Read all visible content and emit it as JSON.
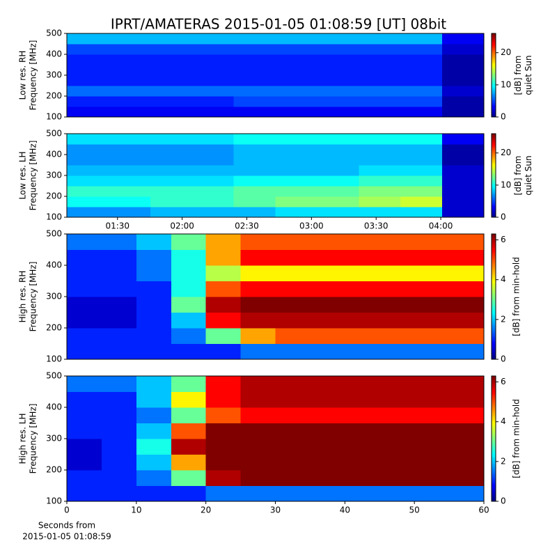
{
  "chart_data": [
    {
      "type": "heatmap",
      "title": "IPRT/AMATERAS 2015-01-05 01:08:59 [UT]   08bit",
      "ylabel": [
        "Low res. RH",
        "Frequency [MHz]"
      ],
      "colorbar_label": [
        "[dB] from",
        "quiet Sun"
      ],
      "colormap": "jet",
      "xlim": [
        66.5,
        260
      ],
      "ylim": [
        100,
        500
      ],
      "yticks": [
        100,
        200,
        300,
        400,
        500
      ],
      "zlim": [
        0,
        26
      ],
      "zticks": [
        0,
        10,
        20
      ],
      "z": [
        [
          3,
          3,
          3,
          3,
          3,
          3,
          3,
          3,
          3,
          1
        ],
        [
          4,
          4,
          4,
          4,
          5,
          5,
          5,
          5,
          5,
          1
        ],
        [
          6,
          6,
          6,
          6,
          6,
          6,
          6,
          6,
          6,
          2
        ],
        [
          4,
          4,
          4,
          4,
          4,
          4,
          4,
          4,
          4,
          1
        ],
        [
          4,
          4,
          4,
          4,
          4,
          4,
          4,
          4,
          4,
          1
        ],
        [
          4,
          4,
          4,
          4,
          4,
          4,
          4,
          4,
          4,
          1
        ],
        [
          5,
          5,
          5,
          5,
          5,
          5,
          5,
          5,
          5,
          2
        ],
        [
          8,
          8,
          8,
          8,
          8,
          8,
          8,
          8,
          8,
          3
        ]
      ]
    },
    {
      "type": "heatmap",
      "ylabel": [
        "Low res. LH",
        "Frequency [MHz]"
      ],
      "colorbar_label": [
        "[dB] from",
        "quiet Sun"
      ],
      "colormap": "jet",
      "xlim": [
        66.5,
        260
      ],
      "xticks": [
        {
          "value": 90,
          "label": "01:30"
        },
        {
          "value": 120,
          "label": "02:00"
        },
        {
          "value": 150,
          "label": "02:30"
        },
        {
          "value": 180,
          "label": "03:00"
        },
        {
          "value": 210,
          "label": "03:30"
        },
        {
          "value": 240,
          "label": "04:00"
        }
      ],
      "ylim": [
        100,
        500
      ],
      "yticks": [
        100,
        200,
        300,
        400,
        500
      ],
      "zlim": [
        0,
        26
      ],
      "zticks": [
        0,
        10,
        20
      ],
      "z": [
        [
          7,
          7,
          8,
          8,
          8,
          9,
          9,
          9,
          9,
          2
        ],
        [
          10,
          10,
          11,
          11,
          12,
          13,
          13,
          14,
          15,
          2
        ],
        [
          11,
          11,
          11,
          11,
          12,
          12,
          12,
          13,
          13,
          2
        ],
        [
          9,
          9,
          9,
          9,
          10,
          10,
          10,
          11,
          11,
          2
        ],
        [
          8,
          8,
          8,
          8,
          8,
          8,
          8,
          9,
          9,
          2
        ],
        [
          7,
          7,
          7,
          7,
          8,
          8,
          8,
          8,
          8,
          1
        ],
        [
          7,
          7,
          7,
          7,
          8,
          8,
          8,
          8,
          8,
          1
        ],
        [
          9,
          9,
          9,
          9,
          10,
          10,
          10,
          10,
          10,
          3
        ]
      ]
    },
    {
      "type": "heatmap",
      "ylabel": [
        "High res. RH",
        "Frequency [MHz]"
      ],
      "colorbar_label": [
        "[dB] from min-hold"
      ],
      "colormap": "jet",
      "xlim": [
        0,
        60
      ],
      "ylim": [
        100,
        500
      ],
      "yticks": [
        100,
        200,
        300,
        400,
        500
      ],
      "zlim": [
        0,
        6.3
      ],
      "zticks": [
        0,
        2,
        4,
        6
      ],
      "z": [
        [
          1,
          1,
          1,
          1,
          1,
          1.5,
          1.5,
          1.5,
          1.5,
          1.5,
          1.5,
          1.5
        ],
        [
          1,
          1,
          1,
          1.5,
          3,
          4.5,
          5,
          5,
          5,
          5,
          5,
          5
        ],
        [
          0.5,
          0.5,
          1,
          2,
          5.5,
          6,
          6,
          6,
          6,
          6,
          6,
          6
        ],
        [
          0.5,
          0.5,
          1,
          3,
          6,
          6.3,
          6.3,
          6.3,
          6.3,
          6.3,
          6.3,
          6.3
        ],
        [
          1,
          1,
          1,
          2.5,
          5,
          5.5,
          5.5,
          5.5,
          5.5,
          5.5,
          5.5,
          5.5
        ],
        [
          1,
          1,
          1.5,
          2.5,
          3.5,
          4,
          4,
          4,
          4,
          4,
          4,
          4
        ],
        [
          1,
          1,
          1.5,
          2.5,
          4.5,
          5.5,
          5.5,
          5.5,
          5.5,
          5.5,
          5.5,
          5.5
        ],
        [
          1.5,
          1.5,
          2,
          3,
          4.5,
          5,
          5,
          5,
          5,
          5,
          5,
          5
        ]
      ]
    },
    {
      "type": "heatmap",
      "ylabel": [
        "High res. LH",
        "Frequency [MHz]"
      ],
      "colorbar_label": [
        "[dB] from min-hold"
      ],
      "xlabel": [
        "Seconds from",
        "2015-01-05 01:08:59"
      ],
      "colormap": "jet",
      "xlim": [
        0,
        60
      ],
      "xticks": [
        0,
        10,
        20,
        30,
        40,
        50,
        60
      ],
      "ylim": [
        100,
        500
      ],
      "yticks": [
        100,
        200,
        300,
        400,
        500
      ],
      "zlim": [
        0,
        6.3
      ],
      "zticks": [
        0,
        2,
        4,
        6
      ],
      "z": [
        [
          1,
          1,
          1,
          1,
          1.5,
          1.5,
          1.5,
          1.5,
          1.5,
          1.5,
          1.5,
          1.5
        ],
        [
          1,
          1,
          1.5,
          3,
          6,
          6.3,
          6.3,
          6.3,
          6.3,
          6.3,
          6.3,
          6.3
        ],
        [
          0.5,
          1,
          2,
          4.5,
          6.3,
          6.3,
          6.3,
          6.3,
          6.3,
          6.3,
          6.3,
          6.3
        ],
        [
          0.5,
          1,
          2.5,
          6,
          6.3,
          6.3,
          6.3,
          6.3,
          6.3,
          6.3,
          6.3,
          6.3
        ],
        [
          1,
          1,
          2,
          5,
          6.3,
          6.3,
          6.3,
          6.3,
          6.3,
          6.3,
          6.3,
          6.3
        ],
        [
          1,
          1,
          1.5,
          3,
          5,
          5.5,
          5.5,
          5.5,
          5.5,
          5.5,
          5.5,
          5.5
        ],
        [
          1,
          1,
          2,
          4,
          5.5,
          6,
          6,
          6,
          6,
          6,
          6,
          6
        ],
        [
          1.5,
          1.5,
          2,
          3,
          5.5,
          6,
          6,
          6,
          6,
          6,
          6,
          6
        ]
      ]
    }
  ]
}
